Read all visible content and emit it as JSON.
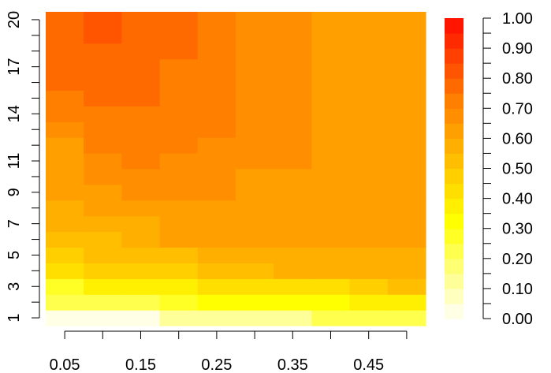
{
  "chart_data": {
    "type": "heatmap",
    "title": "",
    "xlabel": "",
    "ylabel": "",
    "x": [
      0.05,
      0.1,
      0.15,
      0.2,
      0.25,
      0.3,
      0.35,
      0.4,
      0.45,
      0.5
    ],
    "y": [
      1,
      2,
      3,
      4,
      5,
      6,
      7,
      8,
      9,
      10,
      11,
      12,
      13,
      14,
      15,
      16,
      17,
      18,
      19,
      20
    ],
    "x_tick_labels": [
      "0.05",
      "0.15",
      "0.25",
      "0.35",
      "0.45"
    ],
    "y_tick_labels": [
      "1",
      "3",
      "5",
      "7",
      "9",
      "11",
      "14",
      "17",
      "20"
    ],
    "colorbar": {
      "zlim": [
        0,
        1
      ],
      "breaks": 20,
      "tick_labels": [
        "0.00",
        "0.10",
        "0.20",
        "0.30",
        "0.40",
        "0.50",
        "0.60",
        "0.70",
        "0.80",
        "0.90",
        "1.00"
      ]
    },
    "z": [
      [
        0.03,
        0.03,
        0.03,
        0.12,
        0.12,
        0.12,
        0.12,
        0.22,
        0.22,
        0.22
      ],
      [
        0.22,
        0.22,
        0.22,
        0.27,
        0.32,
        0.32,
        0.32,
        0.32,
        0.37,
        0.37
      ],
      [
        0.27,
        0.37,
        0.37,
        0.37,
        0.42,
        0.42,
        0.42,
        0.42,
        0.47,
        0.52
      ],
      [
        0.42,
        0.47,
        0.47,
        0.47,
        0.52,
        0.52,
        0.57,
        0.57,
        0.57,
        0.57
      ],
      [
        0.47,
        0.52,
        0.52,
        0.52,
        0.57,
        0.57,
        0.57,
        0.57,
        0.57,
        0.57
      ],
      [
        0.52,
        0.52,
        0.57,
        0.62,
        0.62,
        0.62,
        0.62,
        0.62,
        0.62,
        0.62
      ],
      [
        0.57,
        0.57,
        0.57,
        0.62,
        0.62,
        0.62,
        0.62,
        0.62,
        0.62,
        0.62
      ],
      [
        0.57,
        0.62,
        0.62,
        0.62,
        0.62,
        0.62,
        0.62,
        0.62,
        0.62,
        0.62
      ],
      [
        0.62,
        0.62,
        0.67,
        0.67,
        0.67,
        0.62,
        0.62,
        0.62,
        0.62,
        0.62
      ],
      [
        0.62,
        0.67,
        0.67,
        0.67,
        0.67,
        0.62,
        0.62,
        0.62,
        0.62,
        0.62
      ],
      [
        0.62,
        0.67,
        0.72,
        0.67,
        0.67,
        0.67,
        0.67,
        0.62,
        0.62,
        0.62
      ],
      [
        0.62,
        0.72,
        0.72,
        0.72,
        0.67,
        0.67,
        0.67,
        0.62,
        0.62,
        0.62
      ],
      [
        0.67,
        0.72,
        0.72,
        0.72,
        0.72,
        0.67,
        0.67,
        0.62,
        0.62,
        0.62
      ],
      [
        0.72,
        0.72,
        0.72,
        0.72,
        0.72,
        0.67,
        0.67,
        0.62,
        0.62,
        0.62
      ],
      [
        0.72,
        0.77,
        0.77,
        0.72,
        0.72,
        0.67,
        0.67,
        0.62,
        0.62,
        0.62
      ],
      [
        0.77,
        0.77,
        0.77,
        0.72,
        0.72,
        0.67,
        0.67,
        0.62,
        0.62,
        0.62
      ],
      [
        0.77,
        0.77,
        0.77,
        0.72,
        0.72,
        0.67,
        0.67,
        0.62,
        0.62,
        0.62
      ],
      [
        0.77,
        0.77,
        0.77,
        0.77,
        0.72,
        0.67,
        0.67,
        0.62,
        0.62,
        0.62
      ],
      [
        0.77,
        0.82,
        0.77,
        0.77,
        0.72,
        0.67,
        0.67,
        0.62,
        0.62,
        0.62
      ],
      [
        0.77,
        0.82,
        0.77,
        0.77,
        0.72,
        0.67,
        0.67,
        0.62,
        0.62,
        0.62
      ]
    ],
    "palette": [
      "#FFFFE6",
      "#FFFFBF",
      "#FFFF99",
      "#FFFF73",
      "#FFFF4D",
      "#FFFF26",
      "#FFFF00",
      "#FFEF00",
      "#FFDF00",
      "#FFCF00",
      "#FFBF00",
      "#FFAF00",
      "#FF9F00",
      "#FF8F00",
      "#FF7F00",
      "#FF6A00",
      "#FF5500",
      "#FF4000",
      "#FF2A00",
      "#FF1500"
    ]
  }
}
